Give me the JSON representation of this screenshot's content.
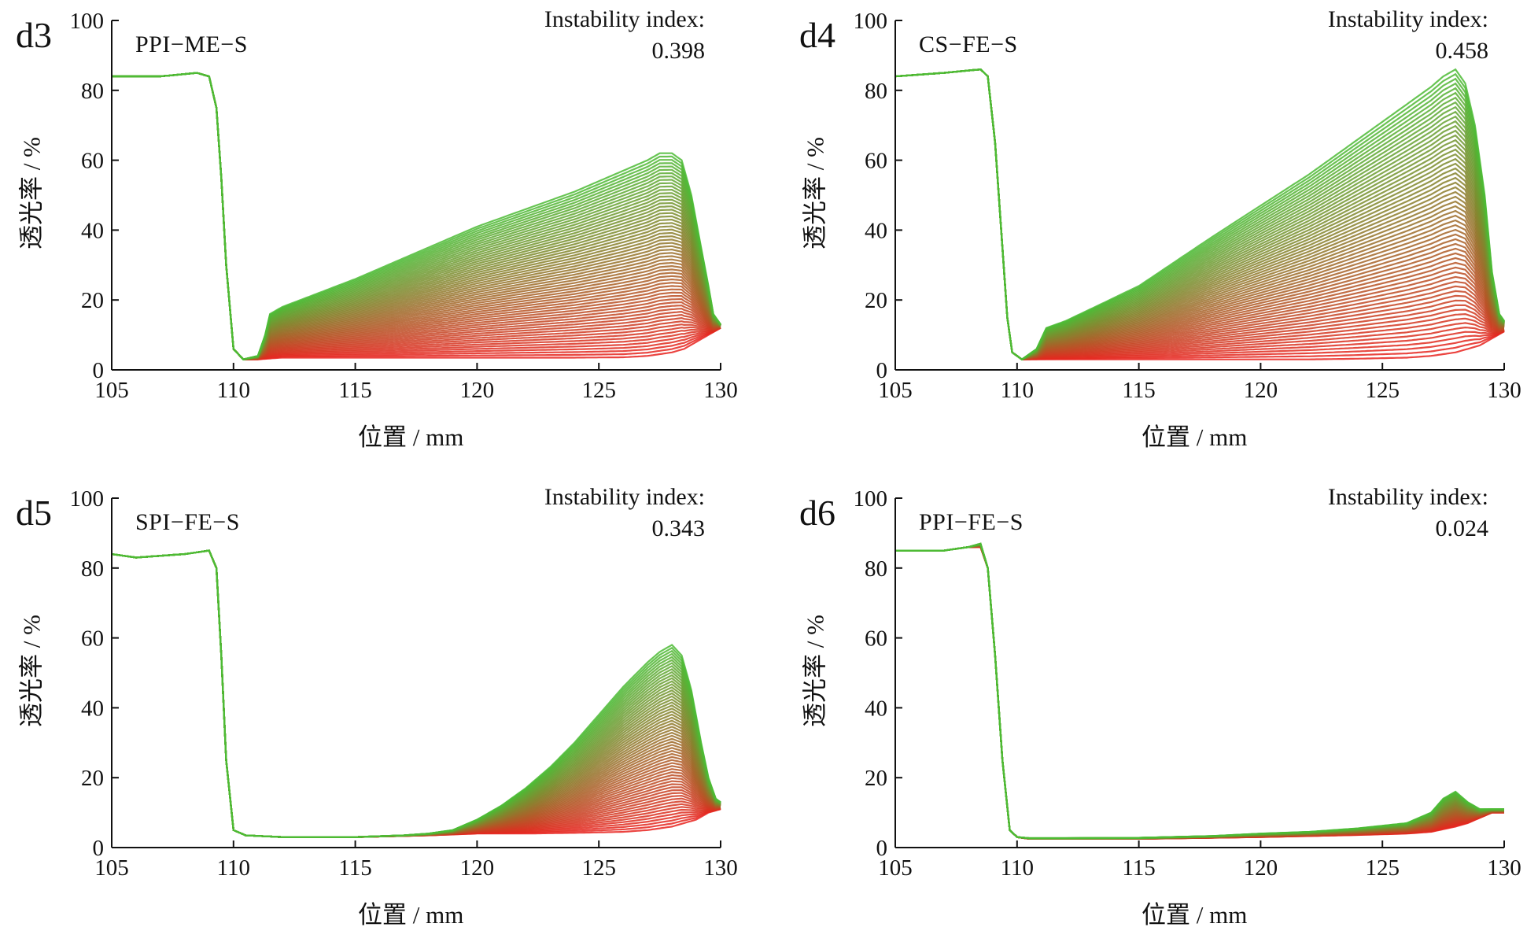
{
  "colors": {
    "initial": "#e8231e",
    "final": "#4cbb35",
    "axis": "#111111"
  },
  "chart_data": [
    {
      "type": "line",
      "panel_label": "d3",
      "sample": "PPI−ME−S",
      "index_label": "Instability index:",
      "index_value": "0.398",
      "xlabel": "位置 / mm",
      "ylabel": "透光率 / %",
      "xlim": [
        105,
        130
      ],
      "ylim": [
        0,
        100
      ],
      "xticks": [
        105,
        110,
        115,
        120,
        125,
        130
      ],
      "yticks": [
        0,
        20,
        40,
        60,
        80,
        100
      ],
      "series": [
        {
          "x": [
            105,
            107,
            108.5,
            109,
            109.3,
            109.5,
            109.7,
            110,
            110.4,
            111,
            112,
            115,
            118,
            120,
            122,
            124,
            126,
            127,
            128,
            128.5,
            129,
            129.5,
            130
          ],
          "values": [
            84,
            84,
            85,
            84,
            75,
            55,
            30,
            6,
            3,
            3,
            3.5,
            3.5,
            3.5,
            3.5,
            3.5,
            3.5,
            3.6,
            4,
            5,
            6,
            8,
            10,
            12
          ]
        },
        {
          "x": [
            105,
            107,
            108.5,
            109,
            109.3,
            109.5,
            109.7,
            110,
            110.4,
            111,
            111.3,
            111.5,
            112,
            115,
            118,
            120,
            122,
            124,
            126,
            127,
            127.5,
            128,
            128.4,
            128.8,
            129.2,
            129.5,
            129.7,
            130
          ],
          "values": [
            84,
            84,
            85,
            84,
            75,
            55,
            30,
            6,
            3,
            4,
            10,
            16,
            18,
            26,
            35,
            41,
            46,
            51,
            57,
            60,
            62,
            62,
            60,
            50,
            35,
            24,
            16,
            13
          ]
        }
      ]
    },
    {
      "type": "line",
      "panel_label": "d4",
      "sample": "CS−FE−S",
      "index_label": "Instability index:",
      "index_value": "0.458",
      "xlabel": "位置 / mm",
      "ylabel": "透光率 / %",
      "xlim": [
        105,
        130
      ],
      "ylim": [
        0,
        100
      ],
      "xticks": [
        105,
        110,
        115,
        120,
        125,
        130
      ],
      "yticks": [
        0,
        20,
        40,
        60,
        80,
        100
      ],
      "series": [
        {
          "x": [
            105,
            107,
            108.5,
            108.8,
            109.1,
            109.4,
            109.6,
            109.8,
            110.2,
            111,
            112,
            115,
            118,
            120,
            122,
            124,
            126,
            127,
            128,
            128.5,
            129,
            129.5,
            130
          ],
          "values": [
            84,
            85,
            86,
            84,
            65,
            35,
            15,
            5,
            3,
            3,
            3,
            3,
            3,
            3,
            3,
            3.2,
            3.5,
            4,
            5,
            6,
            7,
            9,
            11
          ]
        },
        {
          "x": [
            105,
            107,
            108.5,
            108.8,
            109.1,
            109.4,
            109.6,
            109.8,
            110.2,
            110.8,
            111.2,
            112,
            115,
            118,
            120,
            122,
            124,
            126,
            127,
            127.5,
            128,
            128.4,
            128.8,
            129.2,
            129.5,
            129.8,
            130
          ],
          "values": [
            84,
            85,
            86,
            84,
            65,
            35,
            15,
            5,
            3,
            6,
            12,
            14,
            24,
            38,
            47,
            56,
            66,
            76,
            81,
            84,
            86,
            82,
            70,
            50,
            28,
            16,
            14
          ]
        }
      ]
    },
    {
      "type": "line",
      "panel_label": "d5",
      "sample": "SPI−FE−S",
      "index_label": "Instability index:",
      "index_value": "0.343",
      "xlabel": "位置 / mm",
      "ylabel": "透光率 / %",
      "xlim": [
        105,
        130
      ],
      "ylim": [
        0,
        100
      ],
      "xticks": [
        105,
        110,
        115,
        120,
        125,
        130
      ],
      "yticks": [
        0,
        20,
        40,
        60,
        80,
        100
      ],
      "series": [
        {
          "x": [
            105,
            106,
            108,
            109,
            109.3,
            109.5,
            109.7,
            110,
            110.5,
            112,
            115,
            118,
            120,
            122,
            124,
            126,
            127,
            128,
            128.5,
            129,
            129.5,
            130
          ],
          "values": [
            84,
            83,
            84,
            85,
            80,
            55,
            25,
            5,
            3.5,
            3,
            3,
            3.5,
            4,
            4,
            4.2,
            4.5,
            5,
            6,
            7,
            8,
            10,
            11
          ]
        },
        {
          "x": [
            105,
            106,
            108,
            109,
            109.3,
            109.5,
            109.7,
            110,
            110.5,
            112,
            115,
            117,
            118,
            119,
            120,
            121,
            122,
            123,
            124,
            125,
            126,
            127,
            127.5,
            128,
            128.4,
            128.8,
            129.2,
            129.5,
            129.8,
            130
          ],
          "values": [
            84,
            83,
            84,
            85,
            80,
            55,
            25,
            5,
            3.5,
            3,
            3,
            3.5,
            4,
            5,
            8,
            12,
            17,
            23,
            30,
            38,
            46,
            53,
            56,
            58,
            55,
            45,
            30,
            20,
            14,
            13
          ]
        }
      ]
    },
    {
      "type": "line",
      "panel_label": "d6",
      "sample": "PPI−FE−S",
      "index_label": "Instability index:",
      "index_value": "0.024",
      "xlabel": "位置 / mm",
      "ylabel": "透光率 / %",
      "xlim": [
        105,
        130
      ],
      "ylim": [
        0,
        100
      ],
      "xticks": [
        105,
        110,
        115,
        120,
        125,
        130
      ],
      "yticks": [
        0,
        20,
        40,
        60,
        80,
        100
      ],
      "series": [
        {
          "x": [
            105,
            107,
            108,
            108.5,
            108.8,
            109.1,
            109.4,
            109.7,
            110,
            110.5,
            112,
            115,
            118,
            120,
            122,
            124,
            126,
            127,
            128,
            128.5,
            129,
            129.5,
            130
          ],
          "values": [
            85,
            85,
            86,
            86,
            80,
            55,
            25,
            5,
            3,
            2.5,
            2.5,
            2.5,
            2.8,
            3,
            3.3,
            3.6,
            4,
            4.5,
            6,
            7,
            8.5,
            10,
            10
          ]
        },
        {
          "x": [
            105,
            107,
            108,
            108.5,
            108.8,
            109.1,
            109.4,
            109.7,
            110,
            110.5,
            112,
            115,
            118,
            120,
            122,
            124,
            126,
            127,
            127.5,
            128,
            128.5,
            129,
            129.5,
            130
          ],
          "values": [
            85,
            85,
            86,
            87,
            80,
            55,
            25,
            5,
            3,
            2.7,
            2.7,
            2.8,
            3.3,
            4,
            4.5,
            5.5,
            7,
            10,
            14,
            16,
            13,
            11,
            11,
            11
          ]
        }
      ]
    }
  ]
}
